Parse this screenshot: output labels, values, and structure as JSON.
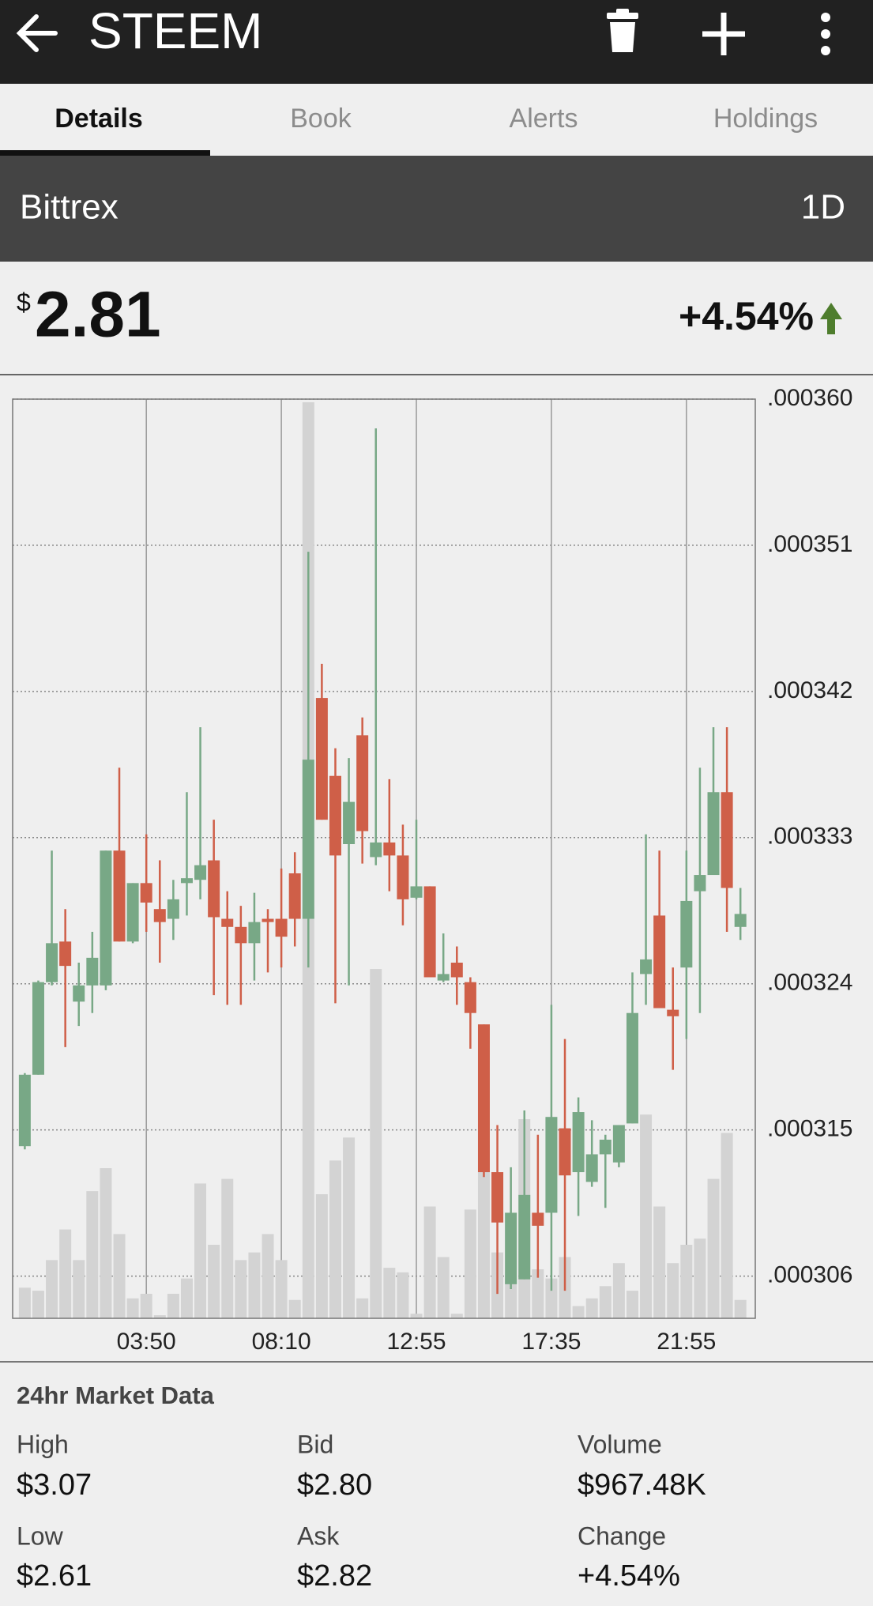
{
  "header": {
    "title": "STEEM"
  },
  "tabs": [
    "Details",
    "Book",
    "Alerts",
    "Holdings"
  ],
  "exchange": "Bittrex",
  "period": "1D",
  "price": {
    "currency": "$",
    "value": "2.81",
    "change": "+4.54%"
  },
  "chart_data": {
    "type": "candlestick",
    "open": [
      0.000314,
      0.0003184,
      0.0003241,
      0.0003266,
      0.0003229,
      0.0003239,
      0.0003239,
      0.0003322,
      0.0003266,
      0.0003302,
      0.0003286,
      0.000328,
      0.0003302,
      0.0003304,
      0.0003316,
      0.000328,
      0.0003275,
      0.0003265,
      0.000328,
      0.000328,
      0.0003308,
      0.000328,
      0.0003416,
      0.0003368,
      0.0003326,
      0.0003393,
      0.0003318,
      0.0003327,
      0.0003319,
      0.0003293,
      0.00033,
      0.0003242,
      0.0003253,
      0.0003241,
      0.0003215,
      0.0003124,
      0.0003055,
      0.0003058,
      0.0003099,
      0.0003099,
      0.0003151,
      0.0003124,
      0.0003118,
      0.0003135,
      0.000313,
      0.0003154,
      0.0003246,
      0.0003282,
      0.0003224,
      0.000325,
      0.0003297,
      0.0003307,
      0.0003358,
      0.0003275
    ],
    "high": [
      0.0003185,
      0.0003242,
      0.0003322,
      0.0003286,
      0.0003253,
      0.0003272,
      0.0003322,
      0.0003373,
      0.0003302,
      0.0003332,
      0.0003316,
      0.0003304,
      0.0003358,
      0.0003398,
      0.0003341,
      0.0003297,
      0.0003288,
      0.0003296,
      0.0003286,
      0.0003311,
      0.0003321,
      0.0003506,
      0.0003437,
      0.0003385,
      0.0003379,
      0.0003404,
      0.0003582,
      0.0003366,
      0.0003338,
      0.0003341,
      0.00033,
      0.0003271,
      0.0003263,
      0.0003244,
      0.0003215,
      0.0003153,
      0.0003127,
      0.0003162,
      0.0003147,
      0.0003227,
      0.0003206,
      0.000317,
      0.0003156,
      0.0003147,
      0.0003153,
      0.0003247,
      0.0003332,
      0.0003322,
      0.000325,
      0.0003322,
      0.0003373,
      0.0003398,
      0.0003398,
      0.0003299
    ],
    "low": [
      0.0003138,
      0.0003184,
      0.0003239,
      0.0003201,
      0.0003214,
      0.0003222,
      0.0003236,
      0.0003266,
      0.0003265,
      0.0003272,
      0.0003253,
      0.0003267,
      0.0003282,
      0.0003292,
      0.0003233,
      0.0003227,
      0.0003227,
      0.0003242,
      0.0003247,
      0.000325,
      0.0003263,
      0.000325,
      0.0003341,
      0.0003228,
      0.0003239,
      0.0003314,
      0.0003313,
      0.0003297,
      0.0003276,
      0.0003292,
      0.0003244,
      0.0003241,
      0.0003227,
      0.00032,
      0.0003121,
      0.0003049,
      0.0003052,
      0.0003058,
      0.0003059,
      0.0003051,
      0.0003051,
      0.0003097,
      0.0003115,
      0.0003102,
      0.0003127,
      0.0003154,
      0.0003227,
      0.0003225,
      0.0003187,
      0.0003206,
      0.0003222,
      0.0003307,
      0.0003272,
      0.0003267
    ],
    "close": [
      0.0003184,
      0.0003241,
      0.0003265,
      0.0003251,
      0.0003239,
      0.0003256,
      0.0003322,
      0.0003266,
      0.0003302,
      0.000329,
      0.0003278,
      0.0003292,
      0.0003305,
      0.0003313,
      0.0003281,
      0.0003275,
      0.0003265,
      0.0003278,
      0.0003278,
      0.0003269,
      0.000328,
      0.0003378,
      0.0003341,
      0.0003319,
      0.0003352,
      0.0003334,
      0.0003327,
      0.0003319,
      0.0003292,
      0.00033,
      0.0003244,
      0.0003246,
      0.0003244,
      0.0003222,
      0.0003124,
      0.0003093,
      0.0003099,
      0.000311,
      0.0003091,
      0.0003158,
      0.0003122,
      0.0003161,
      0.0003135,
      0.0003144,
      0.0003153,
      0.0003222,
      0.0003255,
      0.0003225,
      0.000322,
      0.0003291,
      0.0003307,
      0.0003358,
      0.0003299,
      0.0003283
    ],
    "volume": [
      20,
      18,
      38,
      58,
      38,
      83,
      98,
      55,
      13,
      16,
      2,
      16,
      26,
      88,
      48,
      91,
      38,
      43,
      55,
      38,
      12,
      598,
      81,
      103,
      118,
      13,
      228,
      33,
      30,
      3,
      73,
      40,
      3,
      71,
      113,
      43,
      26,
      130,
      32,
      26,
      40,
      8,
      13,
      21,
      36,
      18,
      133,
      73,
      36,
      48,
      52,
      91,
      121,
      12
    ],
    "volume_lim": [
      0,
      600
    ],
    "ylim": [
      0.0003034,
      0.00036
    ],
    "yticks": [
      {
        "value": 0.000306,
        "label": ".000306"
      },
      {
        "value": 0.000315,
        "label": ".000315"
      },
      {
        "value": 0.000324,
        "label": ".000324"
      },
      {
        "value": 0.000333,
        "label": ".000333"
      },
      {
        "value": 0.000342,
        "label": ".000342"
      },
      {
        "value": 0.000351,
        "label": ".000351"
      },
      {
        "value": 0.00036,
        "label": ".000360"
      }
    ],
    "xlim": [
      0.1,
      55.1
    ],
    "xticks": [
      {
        "value": 10,
        "label": "03:50"
      },
      {
        "value": 20,
        "label": "08:10"
      },
      {
        "value": 30,
        "label": "12:55"
      },
      {
        "value": 40,
        "label": "17:35"
      },
      {
        "value": 50,
        "label": "21:55"
      }
    ],
    "grid": true,
    "up_color": "#78a886",
    "down_color": "#cf5f48",
    "volume_color": "#d3d3d3"
  },
  "market_data": {
    "title": "24hr Market Data",
    "items": [
      {
        "label": "High",
        "value": "$3.07"
      },
      {
        "label": "Bid",
        "value": "$2.80"
      },
      {
        "label": "Volume",
        "value": "$967.48K"
      },
      {
        "label": "Low",
        "value": "$2.61"
      },
      {
        "label": "Ask",
        "value": "$2.82"
      },
      {
        "label": "Change",
        "value": "+4.54%"
      }
    ]
  }
}
